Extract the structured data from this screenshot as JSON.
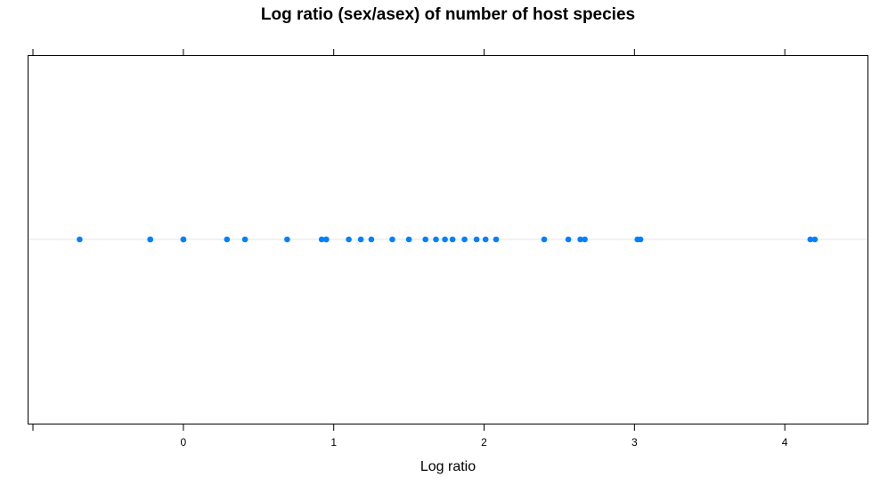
{
  "chart_data": {
    "type": "scatter",
    "title": "Log ratio (sex/asex) of number of host species",
    "xlabel": "Log ratio",
    "ylabel": "",
    "xlim": [
      -1.03,
      4.55
    ],
    "x_ticks": [
      0,
      1,
      2,
      3,
      4
    ],
    "grid": false,
    "legend": "none",
    "point_color": "#0080ff",
    "reference_line_color": "#e6e6e6",
    "x": [
      -0.69,
      -0.22,
      -0.22,
      0.0,
      0.0,
      0.29,
      0.41,
      0.69,
      0.92,
      0.95,
      0.95,
      1.1,
      1.18,
      1.25,
      1.39,
      1.5,
      1.61,
      1.68,
      1.74,
      1.79,
      1.87,
      1.95,
      2.01,
      2.08,
      2.4,
      2.56,
      2.64,
      2.67,
      3.02,
      3.04,
      4.17,
      4.2
    ]
  }
}
